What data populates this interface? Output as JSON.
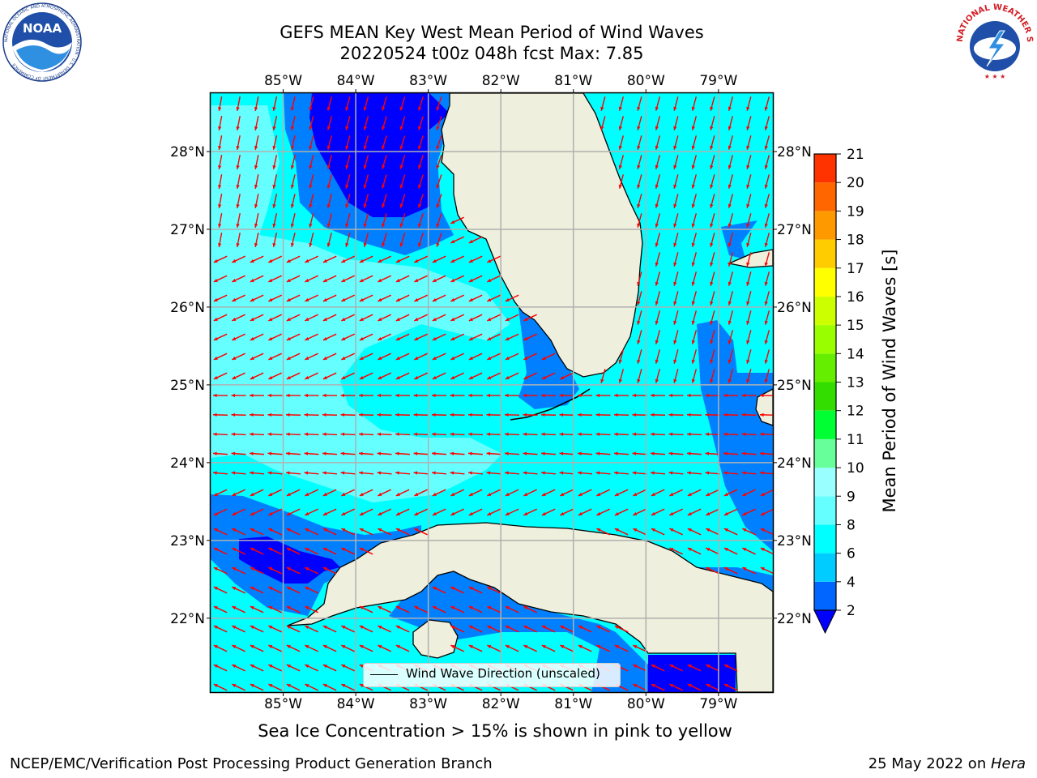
{
  "title": {
    "line1": "GEFS MEAN Key West Mean Period of Wind Waves",
    "line2": "20220524 t00z 048h fcst   Max: 7.85"
  },
  "map": {
    "lon_ticks": [
      "85°W",
      "84°W",
      "83°W",
      "82°W",
      "81°W",
      "80°W",
      "79°W"
    ],
    "lat_ticks": [
      "28°N",
      "27°N",
      "26°N",
      "25°N",
      "24°N",
      "23°N",
      "22°N"
    ],
    "lon_range": [
      -86.0,
      -78.25
    ],
    "lat_range": [
      21.05,
      28.75
    ],
    "ocean_color": "#00ffff",
    "land_color": "#efefdd",
    "arrow_color": "#ff0000",
    "legend": "Wind Wave Direction (unscaled)"
  },
  "colorbar": {
    "label": "Mean Period of Wind Waves [s]",
    "ticks": [
      "2",
      "4",
      "6",
      "8",
      "9",
      "10",
      "11",
      "12",
      "13",
      "14",
      "15",
      "16",
      "17",
      "18",
      "19",
      "20",
      "21"
    ],
    "colors": [
      "#0066ff",
      "#00ccff",
      "#00ffff",
      "#66ffff",
      "#99ffff",
      "#66ff99",
      "#00ff33",
      "#33dd00",
      "#66ee00",
      "#99ff00",
      "#ccff00",
      "#ffff00",
      "#ffcc00",
      "#ff9900",
      "#ff6600",
      "#ff3300",
      "#ff0000"
    ],
    "under_color": "#0000ff"
  },
  "subcaption": "Sea Ice Concentration > 15% is shown in pink to yellow",
  "footer": {
    "credit": "NCEP/EMC/Verification Post Processing Product Generation Branch",
    "date_prefix": "25 May 2022 on ",
    "date_host": "Hera"
  },
  "logos": {
    "left": "NOAA",
    "left_ring": "NATIONAL OCEANIC AND ATMOSPHERIC ADMINISTRATION · U.S. DEPARTMENT OF COMMERCE",
    "right_ring": "NATIONAL WEATHER SERVICE"
  }
}
